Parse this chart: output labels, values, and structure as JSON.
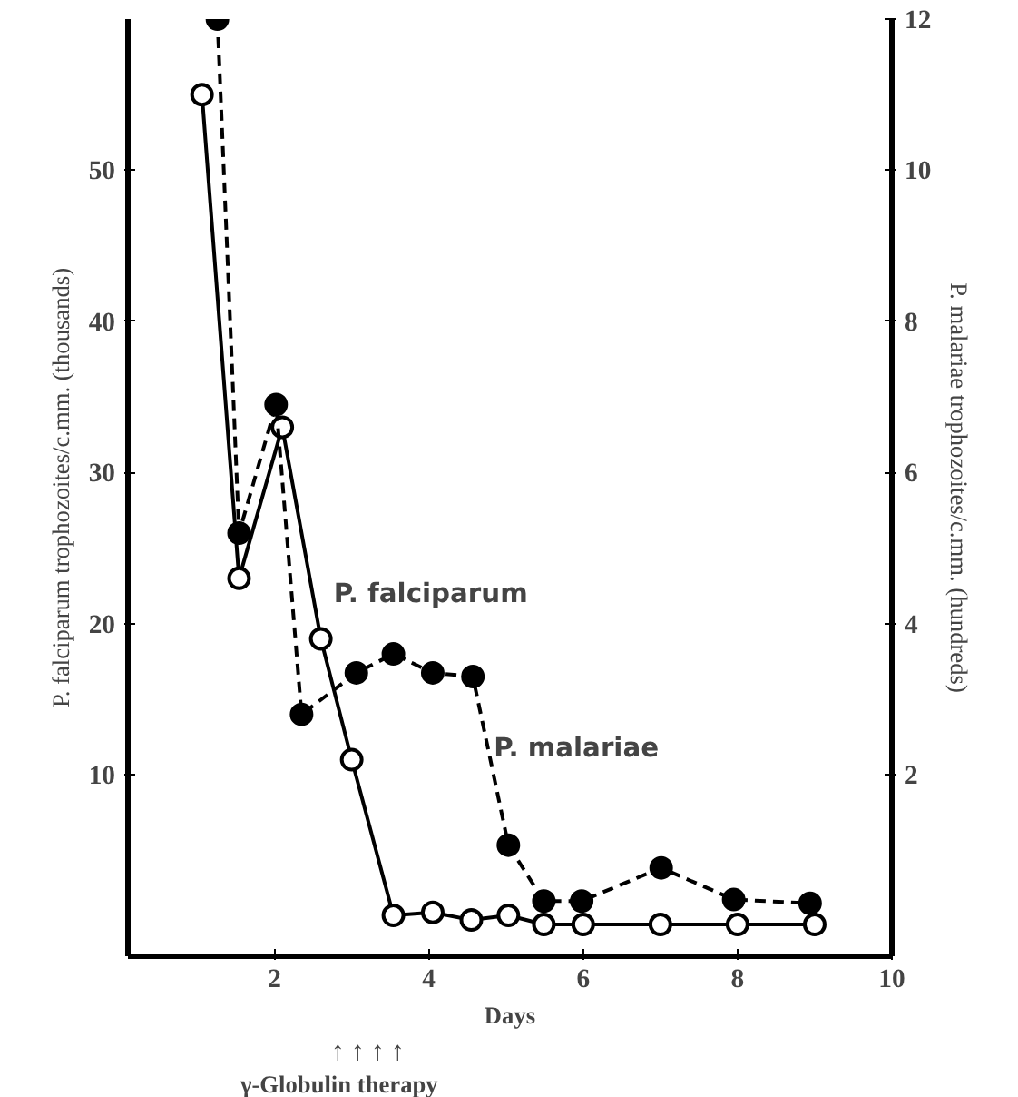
{
  "chart_data": {
    "type": "line",
    "xlabel": "Days",
    "ylabel": "P. falciparum trophozoites/c.mm. (thousands)",
    "y2label": "P. malariae trophozoites/c.mm. (hundreds)",
    "xlim": [
      0.1,
      10
    ],
    "xticks": [
      2,
      4,
      6,
      8,
      10
    ],
    "ylim": [
      -2,
      60
    ],
    "yticks": [
      10,
      20,
      30,
      40,
      50
    ],
    "y2lim": [
      -0.4,
      12
    ],
    "y2ticks": [
      2,
      4,
      6,
      8,
      10,
      12
    ],
    "grid": false,
    "series": [
      {
        "name": "P. falciparum",
        "color": "#000000",
        "line_style": "solid",
        "marker": "circle_open",
        "x": [
          1.06,
          1.54,
          2.1,
          2.6,
          3.0,
          3.54,
          4.05,
          4.55,
          5.03,
          5.49,
          6.0,
          7.0,
          8.0,
          9.0
        ],
        "values": [
          55,
          23,
          33,
          19,
          11,
          0.7,
          0.9,
          0.4,
          0.7,
          0.1,
          0.1,
          0.1,
          0.1,
          0.1
        ]
      },
      {
        "name": "P. malariae",
        "color": "#000000",
        "line_style": "dashed",
        "marker": "circle",
        "axis": "y2",
        "x": [
          1.26,
          1.54,
          2.02,
          2.35,
          3.06,
          3.54,
          4.05,
          4.57,
          5.03,
          5.49,
          5.98,
          7.01,
          7.95,
          8.94
        ],
        "values": [
          12,
          5.2,
          6.9,
          2.8,
          3.35,
          3.6,
          3.35,
          3.3,
          1.07,
          0.33,
          0.33,
          0.77,
          0.35,
          0.3
        ]
      }
    ],
    "annotations": [
      "↑  ↑  ↑  ↑",
      "γ-Globulin therapy"
    ]
  }
}
